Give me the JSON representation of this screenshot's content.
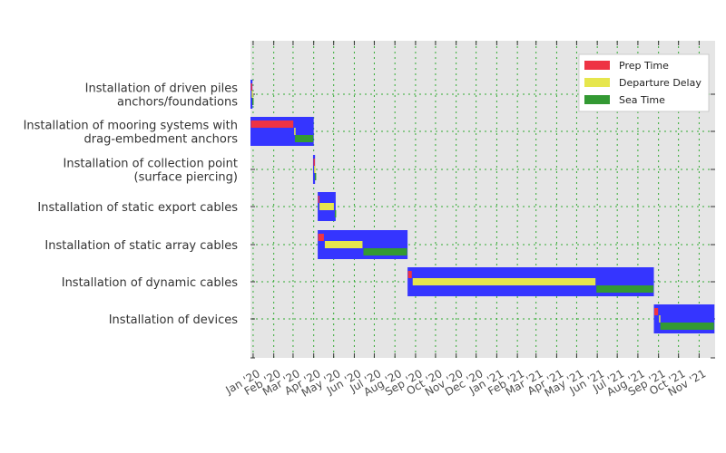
{
  "chart_data": {
    "type": "gantt",
    "title": "",
    "xlabel": "",
    "ylabel": "",
    "grid": true,
    "legend_position": "top-right",
    "colors": {
      "background": "#e5e5e5",
      "total_bar": "#3535ff",
      "prep_time": "#ee3344",
      "departure_delay": "#e6e64d",
      "sea_time": "#339933",
      "grid": "#33aa33"
    },
    "legend": [
      {
        "key": "prep",
        "label": "Prep Time",
        "color": "#ee3344"
      },
      {
        "key": "delay",
        "label": "Departure Delay",
        "color": "#e6e64d"
      },
      {
        "key": "sea",
        "label": "Sea Time",
        "color": "#339933"
      }
    ],
    "x_range": [
      "2019-12-28",
      "2021-11-25"
    ],
    "x_ticks": [
      {
        "date": "2020-01-01",
        "label": "Jan '20"
      },
      {
        "date": "2020-02-01",
        "label": "Feb '20"
      },
      {
        "date": "2020-03-01",
        "label": "Mar '20"
      },
      {
        "date": "2020-04-01",
        "label": "Apr '20"
      },
      {
        "date": "2020-05-01",
        "label": "May '20"
      },
      {
        "date": "2020-06-01",
        "label": "Jun '20"
      },
      {
        "date": "2020-07-01",
        "label": "Jul '20"
      },
      {
        "date": "2020-08-01",
        "label": "Aug '20"
      },
      {
        "date": "2020-09-01",
        "label": "Sep '20"
      },
      {
        "date": "2020-10-01",
        "label": "Oct '20"
      },
      {
        "date": "2020-11-01",
        "label": "Nov '20"
      },
      {
        "date": "2020-12-01",
        "label": "Dec '20"
      },
      {
        "date": "2021-01-01",
        "label": "Jan '21"
      },
      {
        "date": "2021-02-01",
        "label": "Feb '21"
      },
      {
        "date": "2021-03-01",
        "label": "Mar '21"
      },
      {
        "date": "2021-04-01",
        "label": "Apr '21"
      },
      {
        "date": "2021-05-01",
        "label": "May '21"
      },
      {
        "date": "2021-06-01",
        "label": "Jun '21"
      },
      {
        "date": "2021-07-01",
        "label": "Jul '21"
      },
      {
        "date": "2021-08-01",
        "label": "Aug '21"
      },
      {
        "date": "2021-09-01",
        "label": "Sep '21"
      },
      {
        "date": "2021-10-01",
        "label": "Oct '21"
      },
      {
        "date": "2021-11-01",
        "label": "Nov '21"
      }
    ],
    "tasks": [
      {
        "label_lines": [
          "Installation of driven piles",
          "anchors/foundations"
        ],
        "start": "2019-12-28",
        "end": "2019-12-31",
        "prep": [
          "2019-12-28",
          "2019-12-29"
        ],
        "delay": [
          "2019-12-29",
          "2019-12-30"
        ],
        "sea": [
          "2019-12-30",
          "2019-12-31"
        ]
      },
      {
        "label_lines": [
          "Installation of mooring systems with",
          "drag-embedment anchors"
        ],
        "start": "2019-12-28",
        "end": "2020-04-01",
        "prep": [
          "2019-12-28",
          "2020-03-02"
        ],
        "delay": [
          "2020-03-02",
          "2020-03-03"
        ],
        "sea": [
          "2020-03-03",
          "2020-04-01"
        ]
      },
      {
        "label_lines": [
          "Installation of collection point",
          "(surface piercing)"
        ],
        "start": "2020-03-31",
        "end": "2020-04-03",
        "prep": [
          "2020-03-31",
          "2020-04-01"
        ],
        "delay": [
          "2020-04-01",
          "2020-04-02"
        ],
        "sea": [
          "2020-04-02",
          "2020-04-03"
        ]
      },
      {
        "label_lines": [
          "Installation of static export cables"
        ],
        "start": "2020-04-07",
        "end": "2020-05-04",
        "prep": [
          "2020-04-07",
          "2020-04-09"
        ],
        "delay": [
          "2020-04-09",
          "2020-05-02"
        ],
        "sea": [
          "2020-05-02",
          "2020-05-04"
        ]
      },
      {
        "label_lines": [
          "Installation of static array cables"
        ],
        "start": "2020-04-07",
        "end": "2020-08-20",
        "prep": [
          "2020-04-07",
          "2020-04-17"
        ],
        "delay": [
          "2020-04-17",
          "2020-06-14"
        ],
        "sea": [
          "2020-06-14",
          "2020-08-20"
        ]
      },
      {
        "label_lines": [
          "Installation of dynamic cables"
        ],
        "start": "2020-08-20",
        "end": "2021-08-25",
        "prep": [
          "2020-08-20",
          "2020-08-27"
        ],
        "delay": [
          "2020-08-27",
          "2021-05-30"
        ],
        "sea": [
          "2021-05-30",
          "2021-08-25"
        ]
      },
      {
        "label_lines": [
          "Installation of devices"
        ],
        "start": "2021-08-25",
        "end": "2021-11-24",
        "prep": [
          "2021-08-25",
          "2021-09-01"
        ],
        "delay": [
          "2021-09-01",
          "2021-09-03"
        ],
        "sea": [
          "2021-09-03",
          "2021-11-24"
        ]
      }
    ]
  }
}
